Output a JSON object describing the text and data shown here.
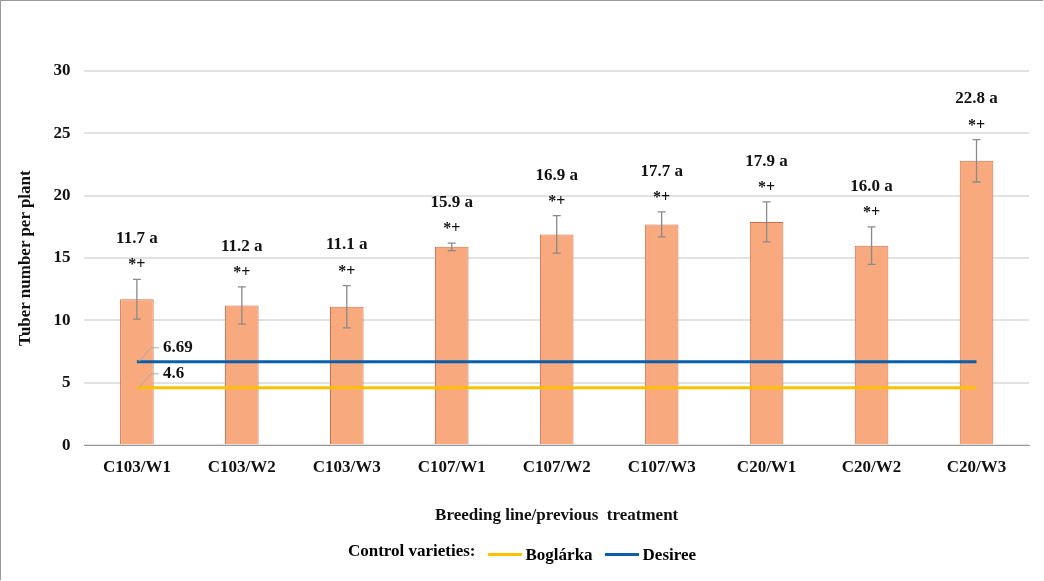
{
  "chart_data": {
    "type": "bar",
    "xlabel": "Breeding line/previous  treatment",
    "ylabel": "Tuber number per plant",
    "categories": [
      "C103/W1",
      "C103/W2",
      "C103/W3",
      "C107/W1",
      "C107/W2",
      "C107/W3",
      "C20/W1",
      "C20/W2",
      "C20/W3"
    ],
    "ylim": [
      0,
      30
    ],
    "yticks": [
      0,
      5,
      10,
      15,
      20,
      25,
      30
    ],
    "grid": "y",
    "legend": "bottom",
    "legend_title": "Control varieties:",
    "series": [
      {
        "color": "#f9a97e",
        "values": [
          11.7,
          11.2,
          11.1,
          15.9,
          16.9,
          17.7,
          17.9,
          16.0,
          22.8
        ],
        "errors": [
          1.6,
          1.5,
          1.7,
          0.3,
          1.5,
          1.0,
          1.6,
          1.5,
          1.7
        ],
        "value_labels": [
          "11.7 a",
          "11.2 a",
          "11.1 a",
          "15.9 a",
          "16.9 a",
          "17.7 a",
          "17.9 a",
          "16.0 a",
          "22.8 a"
        ]
      },
      {
        "type": "line",
        "name": "Boglárka",
        "color": "#ffc000",
        "marker": "none",
        "line_style": "solid",
        "values": [
          4.6,
          4.6,
          4.6,
          4.6,
          4.6,
          4.6,
          4.6,
          4.6,
          4.6
        ],
        "value_labels": [
          "4.6",
          null,
          null,
          null,
          null,
          null,
          null,
          null,
          null
        ]
      },
      {
        "type": "line",
        "name": "Desiree",
        "color": "#0b5ea8",
        "marker": "none",
        "line_style": "solid",
        "values": [
          6.69,
          6.69,
          6.69,
          6.69,
          6.69,
          6.69,
          6.69,
          6.69,
          6.69
        ],
        "value_labels": [
          "6.69",
          null,
          null,
          null,
          null,
          null,
          null,
          null,
          null
        ]
      }
    ],
    "annotations": [
      {
        "text": "*+",
        "x": "C103/W1",
        "y": 11.7
      },
      {
        "text": "*+",
        "x": "C103/W2",
        "y": 11.2
      },
      {
        "text": "*+",
        "x": "C103/W3",
        "y": 11.1
      },
      {
        "text": "*+",
        "x": "C107/W1",
        "y": 15.9
      },
      {
        "text": "*+",
        "x": "C107/W2",
        "y": 16.9
      },
      {
        "text": "*+",
        "x": "C107/W3",
        "y": 17.7
      },
      {
        "text": "*+",
        "x": "C20/W1",
        "y": 17.9
      },
      {
        "text": "*+",
        "x": "C20/W2",
        "y": 16.0
      },
      {
        "text": "*+",
        "x": "C20/W3",
        "y": 22.8
      }
    ]
  }
}
